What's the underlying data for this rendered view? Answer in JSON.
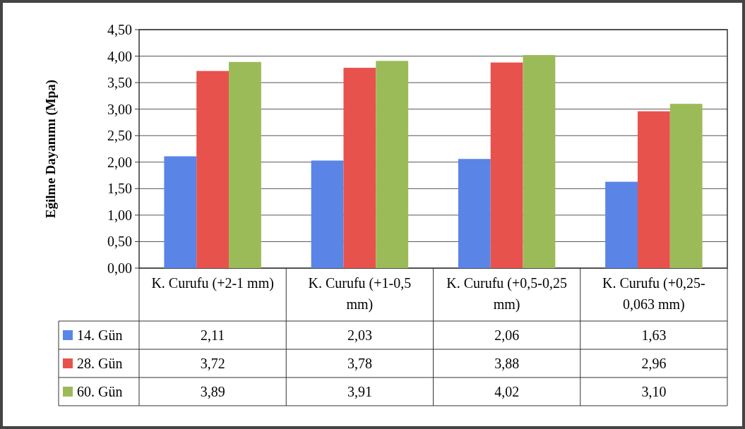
{
  "chart_data": {
    "type": "bar",
    "ylabel": "Eğilme Dayanımı (Mpa)",
    "categories": [
      "K. Curufu (+2-1 mm)",
      "K. Curufu (+1-0,5 mm)",
      "K. Curufu (+0,5-0,25 mm)",
      "K. Curufu (+0,25-0,063 mm)"
    ],
    "series": [
      {
        "name": "14. Gün",
        "color": "#5a84e6",
        "values": [
          2.11,
          2.03,
          2.06,
          1.63
        ],
        "value_labels": [
          "2,11",
          "2,03",
          "2,06",
          "1,63"
        ]
      },
      {
        "name": "28. Gün",
        "color": "#e8524c",
        "values": [
          3.72,
          3.78,
          3.88,
          2.96
        ],
        "value_labels": [
          "3,72",
          "3,78",
          "3,88",
          "2,96"
        ]
      },
      {
        "name": "60. Gün",
        "color": "#9bbb59",
        "values": [
          3.89,
          3.91,
          4.02,
          3.1
        ],
        "value_labels": [
          "3,89",
          "3,91",
          "4,02",
          "3,10"
        ]
      }
    ],
    "ylim": [
      0,
      4.5
    ],
    "yticks": [
      {
        "value": 0,
        "label": "0,00"
      },
      {
        "value": 0.5,
        "label": "0,50"
      },
      {
        "value": 1,
        "label": "1,00"
      },
      {
        "value": 1.5,
        "label": "1,50"
      },
      {
        "value": 2,
        "label": "2,00"
      },
      {
        "value": 2.5,
        "label": "2,50"
      },
      {
        "value": 3,
        "label": "3,00"
      },
      {
        "value": 3.5,
        "label": "3,50"
      },
      {
        "value": 4,
        "label": "4,00"
      },
      {
        "value": 4.5,
        "label": "4,50"
      }
    ],
    "grid": "y",
    "legend": "bottom left"
  }
}
